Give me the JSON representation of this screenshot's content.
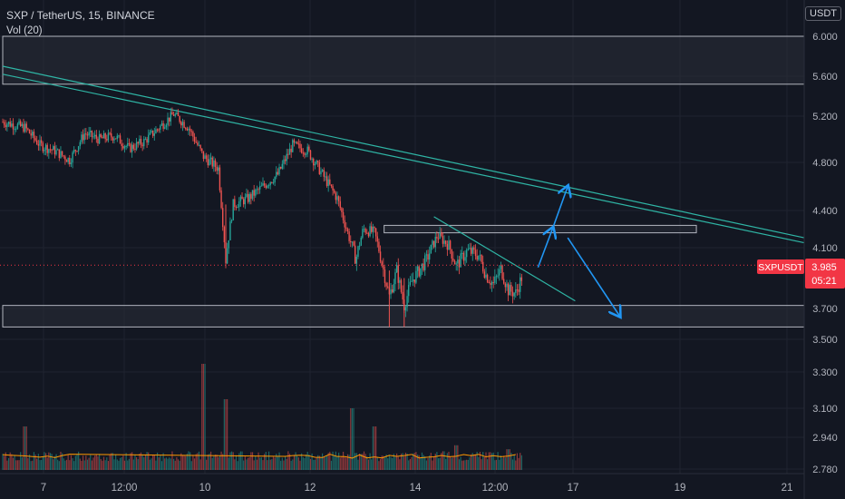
{
  "header": {
    "title": "SXP / TetherUS, 15, BINANCE",
    "volume_label": "Vol (20)"
  },
  "currency_unit": "USDT",
  "price_tag": {
    "symbol": "SXPUSDT",
    "price": "3.985",
    "countdown": "05:21",
    "color": "#f23645"
  },
  "colors": {
    "background": "#131722",
    "up": "#26a69a",
    "down": "#ef5350",
    "trendline": "#2fb5a5",
    "arrow": "#2196f3",
    "zone_border": "#b2b5be",
    "grid": "#1f2330",
    "volume_ma": "#ff9800"
  },
  "chart_data": {
    "type": "candlestick",
    "symbol": "SXP / TetherUS",
    "interval": "15",
    "exchange": "BINANCE",
    "y_scale": "log",
    "y_ticks": [
      "6.000",
      "5.600",
      "5.200",
      "4.800",
      "4.400",
      "4.100",
      "3.700",
      "3.500",
      "3.300",
      "3.100",
      "2.940",
      "2.780"
    ],
    "x_ticks": [
      "7",
      "12:00",
      "10",
      "12",
      "14",
      "12:00",
      "17",
      "19",
      "21"
    ],
    "price_path": [
      [
        0,
        5.15
      ],
      [
        3,
        5.1
      ],
      [
        5,
        4.95
      ],
      [
        7,
        4.9
      ],
      [
        9,
        4.82
      ],
      [
        11,
        5.05
      ],
      [
        13,
        5.0
      ],
      [
        15,
        5.03
      ],
      [
        17,
        4.92
      ],
      [
        19,
        4.98
      ],
      [
        21,
        5.1
      ],
      [
        23,
        5.22
      ],
      [
        25,
        5.1
      ],
      [
        27,
        4.85
      ],
      [
        29,
        4.75
      ],
      [
        30,
        4.02
      ],
      [
        31,
        4.45
      ],
      [
        33,
        4.5
      ],
      [
        35,
        4.6
      ],
      [
        37,
        4.7
      ],
      [
        39,
        4.95
      ],
      [
        41,
        4.9
      ],
      [
        43,
        4.7
      ],
      [
        45,
        4.5
      ],
      [
        46.5,
        4.2
      ],
      [
        47.5,
        4.02
      ],
      [
        48.5,
        4.25
      ],
      [
        50,
        4.22
      ],
      [
        51,
        4.0
      ],
      [
        52,
        3.78
      ],
      [
        53,
        3.95
      ],
      [
        54,
        3.72
      ],
      [
        55,
        3.88
      ],
      [
        57,
        4.02
      ],
      [
        58.5,
        4.2
      ],
      [
        60,
        4.12
      ],
      [
        61,
        3.98
      ],
      [
        62.5,
        4.08
      ],
      [
        64,
        4.05
      ],
      [
        65,
        3.92
      ],
      [
        66,
        3.86
      ],
      [
        67,
        3.96
      ],
      [
        68,
        3.82
      ],
      [
        69,
        3.8
      ],
      [
        70,
        3.93
      ]
    ],
    "volume": {
      "spikes": [
        [
          3,
          3.0
        ],
        [
          27,
          3.35
        ],
        [
          30,
          3.15
        ],
        [
          47,
          3.1
        ],
        [
          50,
          3.0
        ],
        [
          61,
          2.9
        ],
        [
          68,
          2.88
        ]
      ],
      "baseline": 2.8
    },
    "horizontal_zones": [
      {
        "top": 6.0,
        "bottom": 5.52,
        "x_start": 0,
        "x_end": 108
      },
      {
        "top": 4.28,
        "bottom": 4.22,
        "x_start": 51.3,
        "x_end": 93.3
      },
      {
        "top": 3.72,
        "bottom": 3.58,
        "x_start": 0,
        "x_end": 108
      }
    ],
    "trendlines": [
      {
        "from": [
          0,
          5.7
        ],
        "to": [
          108,
          4.18
        ]
      },
      {
        "from": [
          0,
          5.62
        ],
        "to": [
          108,
          4.14
        ]
      },
      {
        "from": [
          58,
          4.35
        ],
        "to": [
          77,
          3.75
        ]
      }
    ],
    "projection_arrows": [
      {
        "from": [
          72,
          3.97
        ],
        "to": [
          74,
          4.26
        ]
      },
      {
        "from": [
          74,
          4.26
        ],
        "to": [
          76,
          4.6
        ]
      },
      {
        "from": [
          76,
          4.18
        ],
        "to": [
          83,
          3.65
        ]
      }
    ],
    "current_price": 3.985,
    "grid": true
  }
}
